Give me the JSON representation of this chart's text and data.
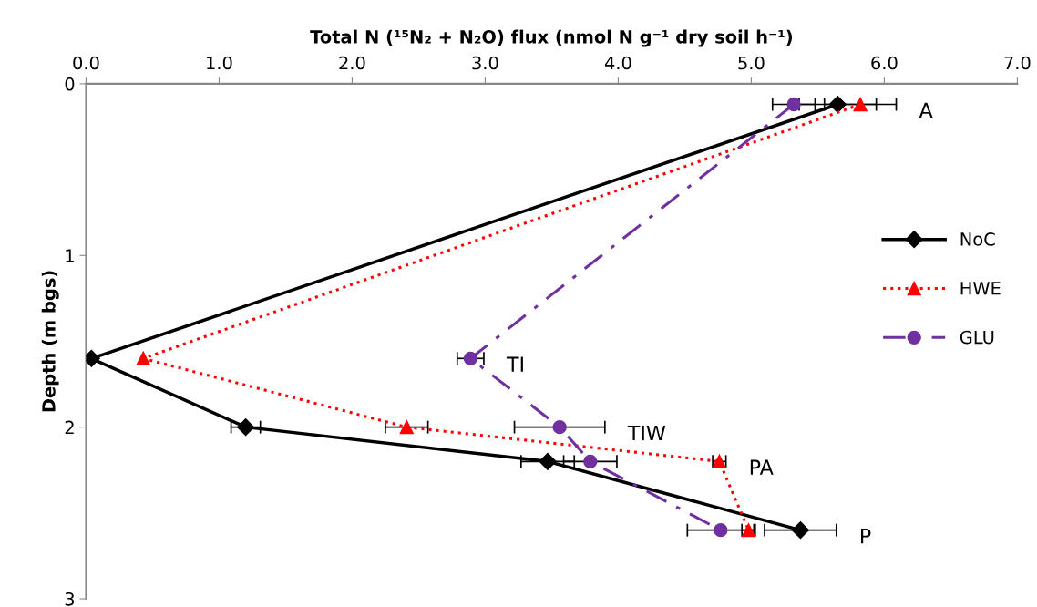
{
  "chart_data": {
    "type": "line",
    "xlabel": "Total N (¹⁵N₂ + N₂O) flux (nmol N g⁻¹ dry soil h⁻¹)",
    "ylabel": "Depth (m bgs)",
    "xlim": [
      0,
      7
    ],
    "xticks": [
      {
        "value": 0,
        "label": "0.0"
      },
      {
        "value": 1,
        "label": "1.0"
      },
      {
        "value": 2,
        "label": "2.0"
      },
      {
        "value": 3,
        "label": "3.0"
      },
      {
        "value": 4,
        "label": "4.0"
      },
      {
        "value": 5,
        "label": "5.0"
      },
      {
        "value": 6,
        "label": "6.0"
      },
      {
        "value": 7,
        "label": "7.0"
      }
    ],
    "ylim": [
      3,
      0
    ],
    "yticks": [
      0,
      1,
      2,
      3
    ],
    "grid": false,
    "legend": "right",
    "series": [
      {
        "name": "NoC",
        "color": "#000000",
        "marker": "diamond",
        "line_style": "solid",
        "x": [
          5.65,
          0.04,
          1.2,
          3.47,
          5.37
        ],
        "values": [
          0.12,
          1.6,
          2.0,
          2.2,
          2.6
        ],
        "xerrors": [
          0.29,
          null,
          0.11,
          0.2,
          0.27
        ]
      },
      {
        "name": "HWE",
        "color": "#ff0000",
        "marker": "triangle",
        "line_style": "dotted",
        "x": [
          5.82,
          0.43,
          2.41,
          4.76,
          4.98
        ],
        "values": [
          0.12,
          1.6,
          2.0,
          2.2,
          2.6
        ],
        "xerrors": [
          0.27,
          null,
          0.16,
          0.05,
          0.05
        ]
      },
      {
        "name": "GLU",
        "color": "#7030a0",
        "marker": "circle",
        "line_style": "dashdot",
        "x": [
          5.32,
          2.89,
          3.56,
          3.79,
          4.77
        ],
        "values": [
          0.12,
          1.6,
          2.0,
          2.2,
          2.6
        ],
        "xerrors": [
          0.16,
          0.1,
          0.34,
          0.2,
          0.25
        ]
      }
    ],
    "annotations": [
      "A",
      "TI",
      "TIW",
      "PA",
      "P"
    ]
  }
}
